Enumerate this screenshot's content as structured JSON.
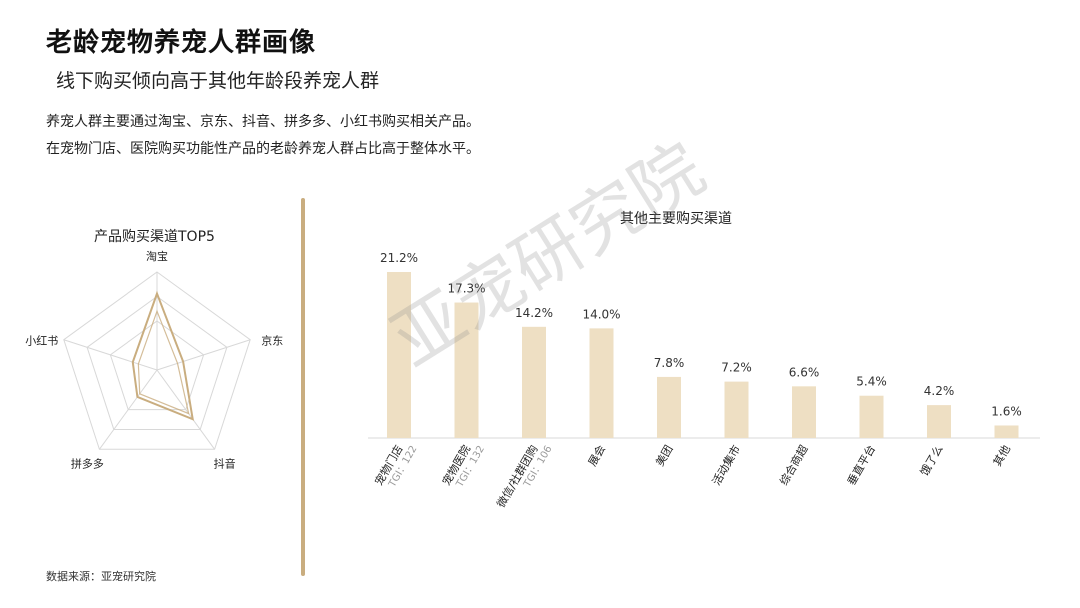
{
  "header": {
    "title": "老龄宠物养宠人群画像",
    "subtitle": "线下购买倾向高于其他年龄段养宠人群",
    "desc1": "养宠人群主要通过淘宝、京东、抖音、拼多多、小红书购买相关产品。",
    "desc2": "在宠物门店、医院购买功能性产品的老龄养宠人群占比高于整体水平。"
  },
  "watermark": "亚宠研究院",
  "source": "数据来源：亚宠研究院",
  "colors": {
    "bar": "#eedfc3",
    "line": "#c9ad7f",
    "grid": "#d8d8d8",
    "accent": "#c9ad7f"
  },
  "chart_data": [
    {
      "type": "radar",
      "title": "产品购买渠道TOP5",
      "axes": [
        "淘宝",
        "京东",
        "抖音",
        "拼多多",
        "小红书"
      ],
      "series": [
        {
          "values": [
            0.78,
            0.28,
            0.62,
            0.34,
            0.26
          ]
        },
        {
          "values": [
            0.6,
            0.22,
            0.55,
            0.3,
            0.2
          ]
        }
      ]
    },
    {
      "type": "bar",
      "title": "其他主要购买渠道",
      "categories": [
        "宠物门店",
        "宠物医院",
        "微信/社群团购",
        "展会",
        "美团",
        "活动集市",
        "综合商超",
        "垂直平台",
        "饿了么",
        "其他"
      ],
      "values": [
        21.2,
        17.3,
        14.2,
        14.0,
        7.8,
        7.2,
        6.6,
        5.4,
        4.2,
        1.6
      ],
      "labels": [
        "21.2%",
        "17.3%",
        "14.2%",
        "14.0%",
        "7.8%",
        "7.2%",
        "6.6%",
        "5.4%",
        "4.2%",
        "1.6%"
      ],
      "tgi": [
        "TGI：122",
        "TGI：132",
        "TGI：106",
        "",
        "",
        "",
        "",
        "",
        "",
        ""
      ],
      "ylim": [
        0,
        22
      ]
    }
  ]
}
